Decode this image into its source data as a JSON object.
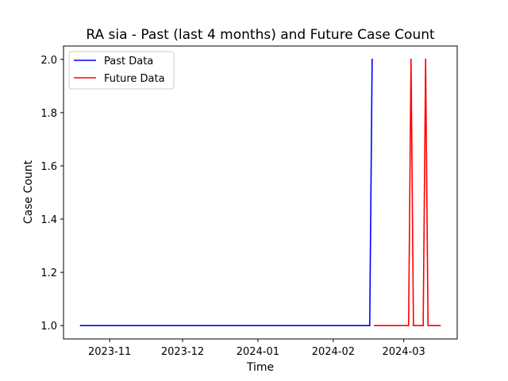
{
  "chart_data": {
    "type": "line",
    "title": "RA sia - Past (last 4 months) and Future Case Count",
    "xlabel": "Time",
    "ylabel": "Case Count",
    "x_ticks": [
      "2023-11",
      "2023-12",
      "2024-01",
      "2024-02",
      "2024-03"
    ],
    "y_ticks": [
      "1.0",
      "1.2",
      "1.4",
      "1.6",
      "1.8",
      "2.0"
    ],
    "xlim": [
      "2023-10-13",
      "2024-03-23"
    ],
    "ylim": [
      0.95,
      2.05
    ],
    "grid": false,
    "legend_position": "top-left",
    "series": [
      {
        "name": "Past Data",
        "color": "#0000ff",
        "points": [
          [
            "2023-10-20",
            1
          ],
          [
            "2024-02-16",
            1
          ],
          [
            "2024-02-17",
            2
          ]
        ]
      },
      {
        "name": "Future Data",
        "color": "#ff0000",
        "points": [
          [
            "2024-02-18",
            1
          ],
          [
            "2024-03-03",
            1
          ],
          [
            "2024-03-04",
            2
          ],
          [
            "2024-03-05",
            1
          ],
          [
            "2024-03-09",
            1
          ],
          [
            "2024-03-10",
            2
          ],
          [
            "2024-03-11",
            1
          ],
          [
            "2024-03-16",
            1
          ]
        ]
      }
    ]
  }
}
